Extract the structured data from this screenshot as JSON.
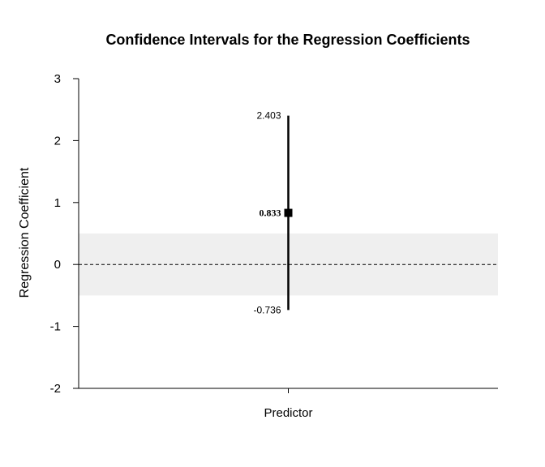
{
  "chart_data": {
    "type": "scatter",
    "title": "Confidence Intervals for the Regression Coefficients",
    "ylabel": "Regression Coefficient",
    "categories": [
      "Predictor"
    ],
    "ylim": [
      -2,
      3
    ],
    "yticks": [
      "3",
      "2",
      "1",
      "0",
      "-1",
      "-2"
    ],
    "points": [
      {
        "category": "Predictor",
        "estimate": 0.833,
        "lower": -0.736,
        "upper": 2.403,
        "estimate_label": "0.833",
        "lower_label": "-0.736",
        "upper_label": "2.403"
      }
    ],
    "shaded_band": [
      -0.5,
      0.5
    ],
    "reference_line": 0,
    "colors": {
      "band": "#efefef",
      "marker": "#000000",
      "reference": "#000000"
    }
  }
}
